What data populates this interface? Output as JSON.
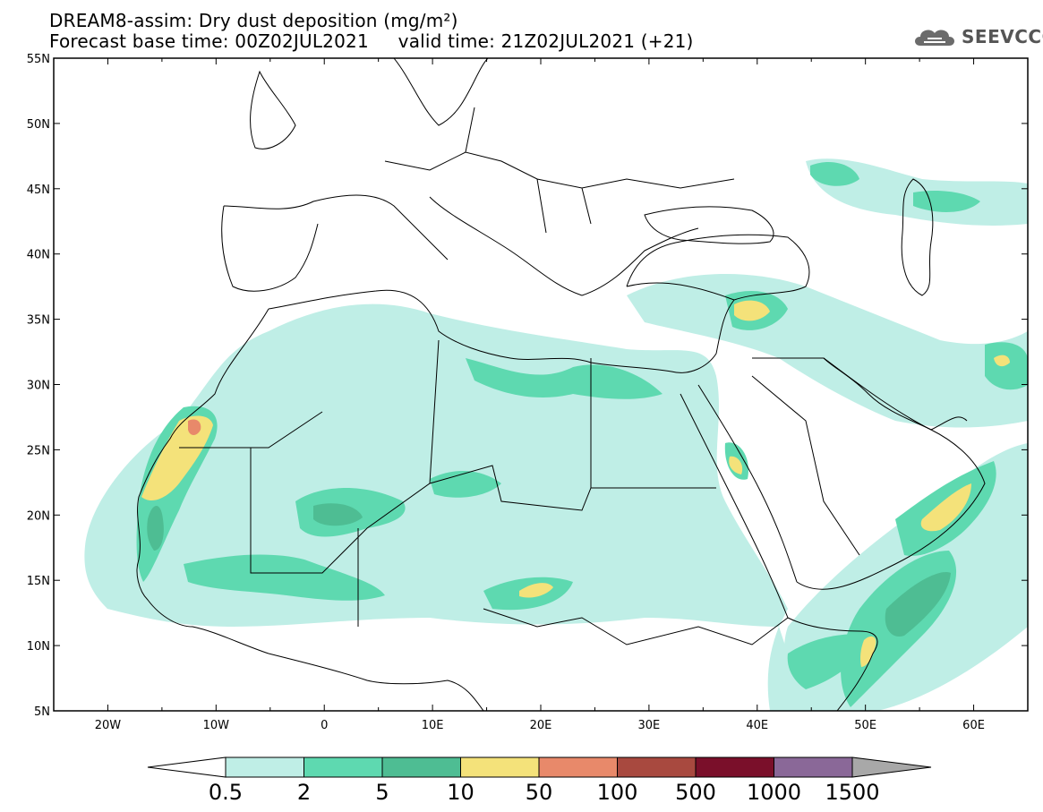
{
  "title": {
    "line1": "DREAM8-assim: Dry dust deposition (mg/m²)",
    "line2": "Forecast base time: 00Z02JUL2021     valid time: 21Z02JUL2021 (+21)"
  },
  "logo": {
    "text": "SEEVCCC",
    "icon": "cloud-icon"
  },
  "map": {
    "lon_range": [
      -25,
      65
    ],
    "lat_range": [
      5,
      55
    ],
    "lat_ticks": [
      "55N",
      "50N",
      "45N",
      "40N",
      "35N",
      "30N",
      "25N",
      "20N",
      "15N",
      "10N",
      "5N"
    ],
    "lon_ticks": [
      "20W",
      "10W",
      "0",
      "10E",
      "20E",
      "30E",
      "40E",
      "50E",
      "60E"
    ],
    "colors": {
      "c1": "#bfeee6",
      "c2": "#5ed9b0",
      "c3": "#4ebd93",
      "c4": "#f4e27a",
      "c5": "#e8896a"
    }
  },
  "colorbar": {
    "labels": [
      "0.5",
      "2",
      "5",
      "10",
      "50",
      "100",
      "500",
      "1000",
      "1500"
    ],
    "colors": [
      "#bfeee6",
      "#5ed9b0",
      "#4ebd93",
      "#f4e27a",
      "#e8896a",
      "#a8493f",
      "#7a0f2a",
      "#8a6898"
    ],
    "under_color": "#ffffff",
    "over_color": "#a8a8a8"
  }
}
